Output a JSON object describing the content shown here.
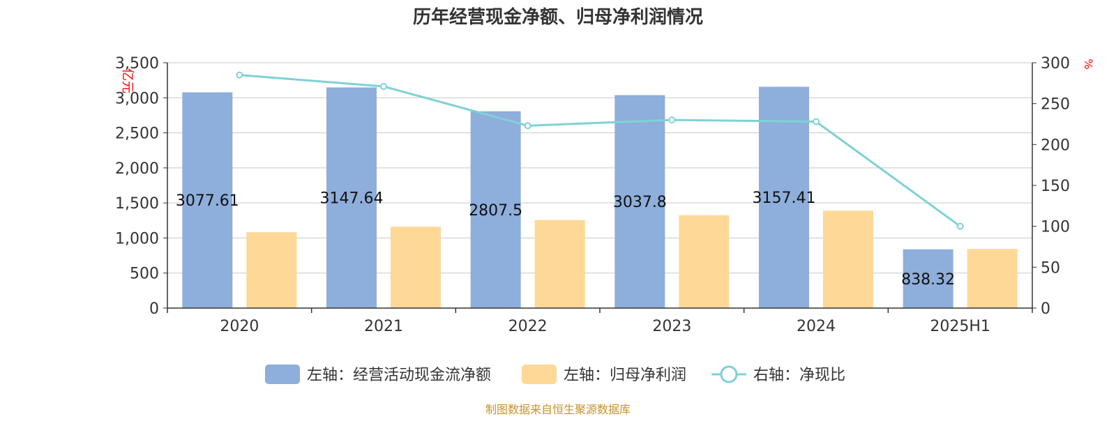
{
  "chart_data": {
    "type": "bar",
    "title": "历年经营现金净额、归母净利润情况",
    "categories": [
      "2020",
      "2021",
      "2022",
      "2023",
      "2024",
      "2025H1"
    ],
    "series": [
      {
        "name": "左轴：经营活动现金流净额",
        "type": "bar",
        "axis": "left",
        "values": [
          3077.61,
          3147.64,
          2807.5,
          3037.8,
          3157.41,
          838.32
        ],
        "data_labels": [
          "3077.61",
          "3147.64",
          "2807.5",
          "3037.8",
          "3157.41",
          "838.32"
        ]
      },
      {
        "name": "左轴：归母净利润",
        "type": "bar",
        "axis": "left",
        "values": [
          1082,
          1162,
          1255,
          1325,
          1389,
          843
        ]
      },
      {
        "name": "右轴：净现比",
        "type": "line",
        "axis": "right",
        "values": [
          285,
          271,
          223,
          230,
          228,
          100
        ]
      }
    ],
    "left_axis": {
      "label": "亿元",
      "ylim": [
        0,
        3500
      ],
      "ticks": [
        0,
        500,
        1000,
        1500,
        2000,
        2500,
        3000,
        3500
      ],
      "tick_labels": [
        "0",
        "500",
        "1,000",
        "1,500",
        "2,000",
        "2,500",
        "3,000",
        "3,500"
      ]
    },
    "right_axis": {
      "label": "%",
      "ylim": [
        0,
        300
      ],
      "ticks": [
        0,
        50,
        100,
        150,
        200,
        250,
        300
      ],
      "tick_labels": [
        "0",
        "50",
        "100",
        "150",
        "200",
        "250",
        "300"
      ]
    },
    "grid": true,
    "legend_position": "bottom",
    "source": "制图数据来自恒生聚源数据库",
    "colors": {
      "bar1": "#8eaedb",
      "bar2": "#fed897",
      "line": "#7fd1d6",
      "grid": "#c8c8c8",
      "axis": "#333333",
      "axis_label": "#ff0000",
      "source": "#c8922a",
      "title": "#333333"
    }
  }
}
